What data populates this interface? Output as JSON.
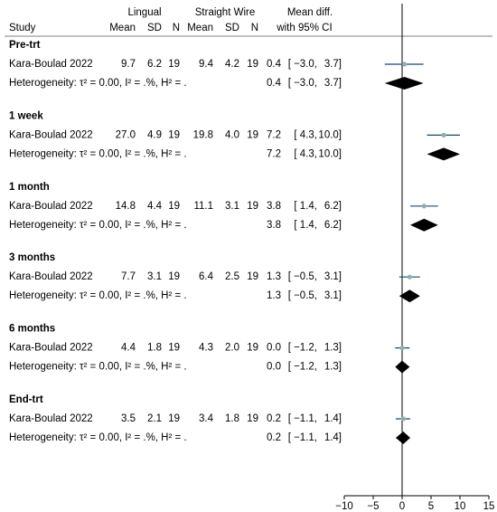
{
  "chart_data": {
    "type": "forest",
    "header": {
      "study": "Study",
      "group1": "Lingual",
      "group2": "Straight Wire",
      "effect": "Mean diff.",
      "ci": "with 95% CI"
    },
    "columns": [
      "Mean",
      "SD",
      "N",
      "Mean",
      "SD",
      "N"
    ],
    "xlim": [
      -10,
      15
    ],
    "xticks": [
      {
        "value": -10,
        "label": "−10"
      },
      {
        "value": -5,
        "label": "−5"
      },
      0,
      5,
      10,
      15
    ],
    "point_color": "#8fb0a6",
    "ci_color": "#1a476f",
    "diamond_color": "#000000",
    "subgroups": [
      {
        "name": "Pre-trt",
        "study": {
          "name": "Kara-Boulad 2022",
          "cells": [
            "9.7",
            "6.2",
            "19",
            "9.4",
            "4.2",
            "19"
          ],
          "effect": 0.4,
          "lo": -3.0,
          "hi": 3.7,
          "effect_label": "0.4",
          "lo_label": "[ −3.0,",
          "hi_label": "3.7]"
        },
        "heterogeneity": {
          "name": "Heterogeneity: τ² = 0.00, I² = .%, H² = .",
          "effect": 0.4,
          "lo": -3.0,
          "hi": 3.7,
          "effect_label": "0.4",
          "lo_label": "[ −3.0,",
          "hi_label": "3.7]"
        }
      },
      {
        "name": "1 week",
        "study": {
          "name": "Kara-Boulad 2022",
          "cells": [
            "27.0",
            "4.9",
            "19",
            "19.8",
            "4.0",
            "19"
          ],
          "effect": 7.2,
          "lo": 4.3,
          "hi": 10.0,
          "effect_label": "7.2",
          "lo_label": "[ 4.3,",
          "hi_label": "10.0]"
        },
        "heterogeneity": {
          "name": "Heterogeneity: τ² = 0.00, I² = .%, H² = .",
          "effect": 7.2,
          "lo": 4.3,
          "hi": 10.0,
          "effect_label": "7.2",
          "lo_label": "[ 4.3,",
          "hi_label": "10.0]"
        }
      },
      {
        "name": "1 month",
        "study": {
          "name": "Kara-Boulad 2022",
          "cells": [
            "14.8",
            "4.4",
            "19",
            "11.1",
            "3.1",
            "19"
          ],
          "effect": 3.8,
          "lo": 1.4,
          "hi": 6.2,
          "effect_label": "3.8",
          "lo_label": "[ 1.4,",
          "hi_label": "6.2]"
        },
        "heterogeneity": {
          "name": "Heterogeneity: τ² = 0.00, I² = .%, H² = .",
          "effect": 3.8,
          "lo": 1.4,
          "hi": 6.2,
          "effect_label": "3.8",
          "lo_label": "[ 1.4,",
          "hi_label": "6.2]"
        }
      },
      {
        "name": "3 months",
        "study": {
          "name": "Kara-Boulad 2022",
          "cells": [
            "7.7",
            "3.1",
            "19",
            "6.4",
            "2.5",
            "19"
          ],
          "effect": 1.3,
          "lo": -0.5,
          "hi": 3.1,
          "effect_label": "1.3",
          "lo_label": "[ −0.5,",
          "hi_label": "3.1]"
        },
        "heterogeneity": {
          "name": "Heterogeneity: τ² = 0.00, I² = .%, H² = .",
          "effect": 1.3,
          "lo": -0.5,
          "hi": 3.1,
          "effect_label": "1.3",
          "lo_label": "[ −0.5,",
          "hi_label": "3.1]"
        }
      },
      {
        "name": "6 months",
        "study": {
          "name": "Kara-Boulad 2022",
          "cells": [
            "4.4",
            "1.8",
            "19",
            "4.3",
            "2.0",
            "19"
          ],
          "effect": 0.0,
          "lo": -1.2,
          "hi": 1.3,
          "effect_label": "0.0",
          "lo_label": "[ −1.2,",
          "hi_label": "1.3]"
        },
        "heterogeneity": {
          "name": "Heterogeneity: τ² = 0.00, I² = .%, H² = .",
          "effect": 0.0,
          "lo": -1.2,
          "hi": 1.3,
          "effect_label": "0.0",
          "lo_label": "[ −1.2,",
          "hi_label": "1.3]"
        }
      },
      {
        "name": "End-trt",
        "study": {
          "name": "Kara-Boulad 2022",
          "cells": [
            "3.5",
            "2.1",
            "19",
            "3.4",
            "1.8",
            "19"
          ],
          "effect": 0.2,
          "lo": -1.1,
          "hi": 1.4,
          "effect_label": "0.2",
          "lo_label": "[ −1.1,",
          "hi_label": "1.4]"
        },
        "heterogeneity": {
          "name": "Heterogeneity: τ² = 0.00, I² = .%, H² = .",
          "effect": 0.2,
          "lo": -1.1,
          "hi": 1.4,
          "effect_label": "0.2",
          "lo_label": "[ −1.1,",
          "hi_label": "1.4]"
        }
      }
    ]
  }
}
